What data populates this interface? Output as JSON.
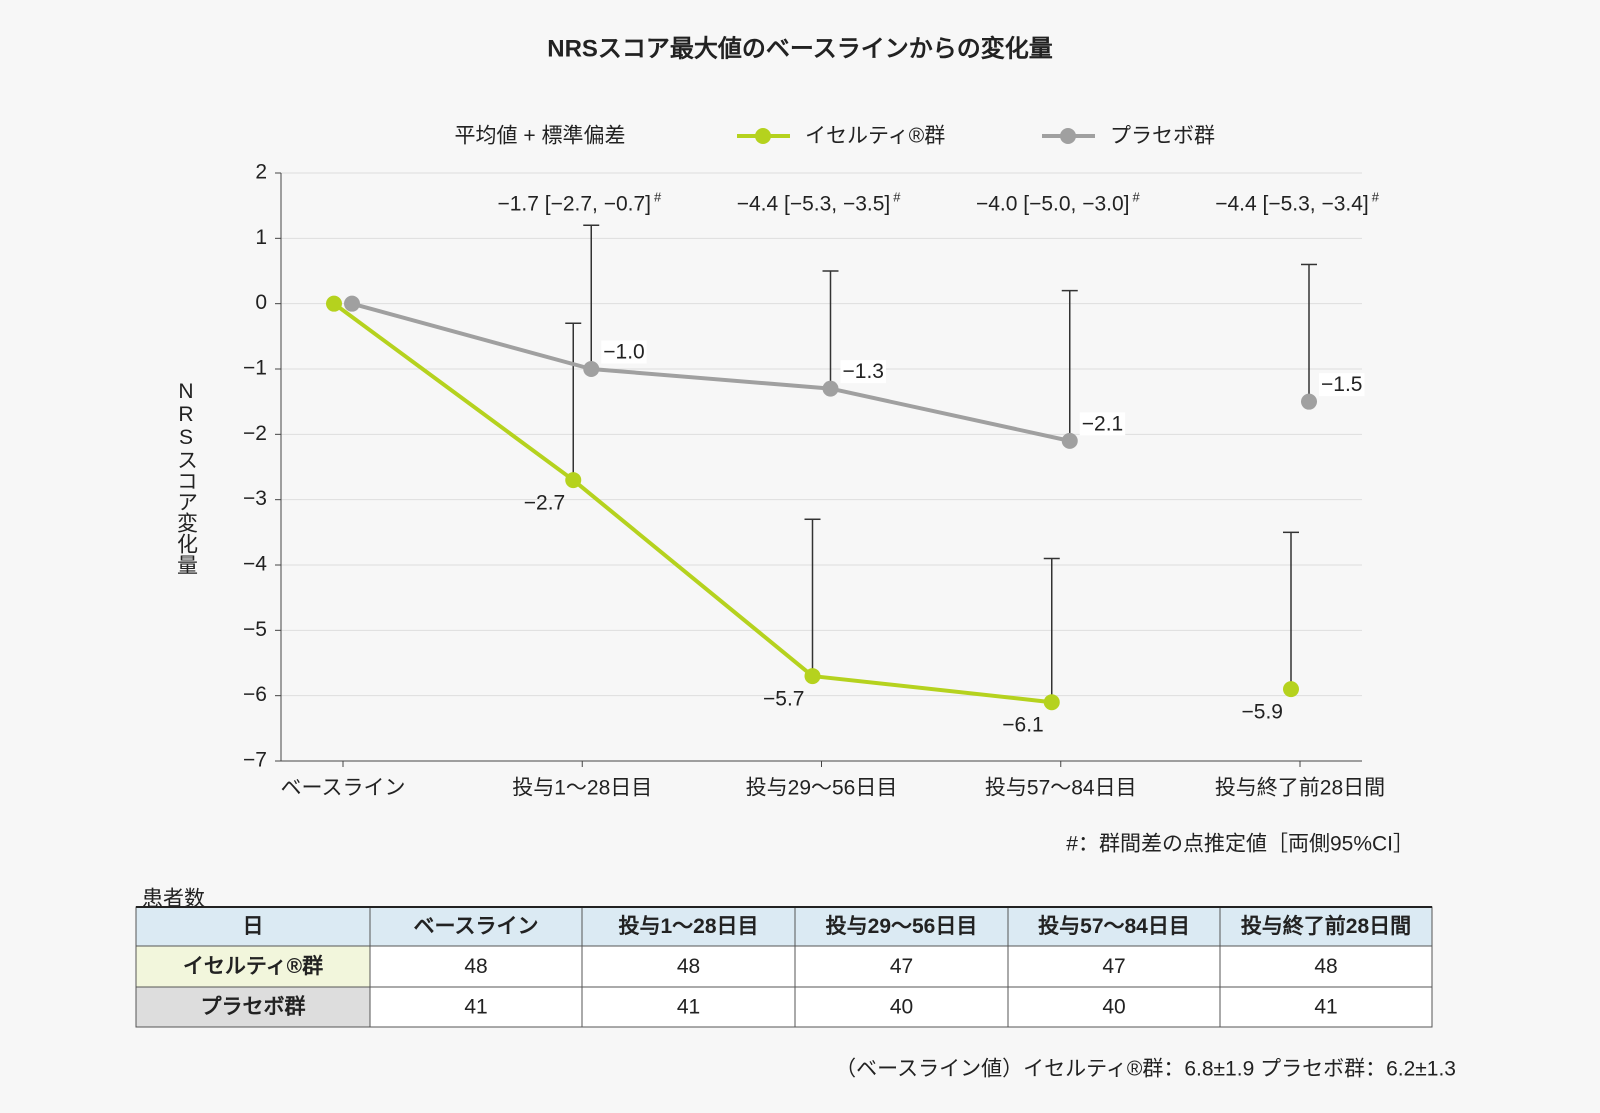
{
  "chart_data": {
    "type": "line",
    "title": "NRSスコア最大値のベースラインからの変化量",
    "legend_note": "平均値 + 標準偏差",
    "y_label": "NRSスコア変化量",
    "categories": [
      "ベースライン",
      "投与1〜28日目",
      "投与29〜56日目",
      "投与57〜84日目",
      "投与終了前28日間"
    ],
    "connect_until_index": 3,
    "series": [
      {
        "name": "イセルティ®群",
        "color": "#b5d21e",
        "values": [
          0,
          -2.7,
          -5.7,
          -6.1,
          -5.9
        ],
        "errors": [
          null,
          2.4,
          2.4,
          2.2,
          2.4
        ],
        "value_labels": [
          null,
          "−2.7",
          "−5.7",
          "−6.1",
          "−5.9"
        ]
      },
      {
        "name": "プラセボ群",
        "color": "#a0a0a0",
        "values": [
          0,
          -1.0,
          -1.3,
          -2.1,
          -1.5
        ],
        "errors": [
          null,
          2.2,
          1.8,
          2.3,
          2.1
        ],
        "value_labels": [
          null,
          "−1.0",
          "−1.3",
          "−2.1",
          "−1.5"
        ]
      }
    ],
    "annotations": [
      null,
      {
        "text": "−1.7 [−2.7, −0.7]",
        "sup": "#"
      },
      {
        "text": "−4.4 [−5.3, −3.5]",
        "sup": "#"
      },
      {
        "text": "−4.0 [−5.0, −3.0]",
        "sup": "#"
      },
      {
        "text": "−4.4 [−5.3, −3.4]",
        "sup": "#"
      }
    ],
    "footnote": "#：群間差の点推定値［両側95%CI］",
    "ylim": [
      -7,
      2
    ],
    "yticks": [
      2,
      1,
      0,
      {
        "value": -1,
        "label": "−1"
      },
      {
        "value": -2,
        "label": "−2"
      },
      {
        "value": -3,
        "label": "−3"
      },
      {
        "value": -4,
        "label": "−4"
      },
      {
        "value": -5,
        "label": "−5"
      },
      {
        "value": -6,
        "label": "−6"
      },
      {
        "value": -7,
        "label": "−7"
      }
    ],
    "grid": true
  },
  "table": {
    "caption": "患者数",
    "header": [
      "日",
      "ベースライン",
      "投与1〜28日目",
      "投与29〜56日目",
      "投与57〜84日目",
      "投与終了前28日間"
    ],
    "rows": [
      [
        "イセルティ®群",
        48,
        48,
        47,
        47,
        48
      ],
      [
        "プラセボ群",
        41,
        41,
        40,
        40,
        41
      ]
    ]
  },
  "note": "（ベースライン値）イセルティ®群：6.8±1.9 プラセボ群：6.2±1.3"
}
